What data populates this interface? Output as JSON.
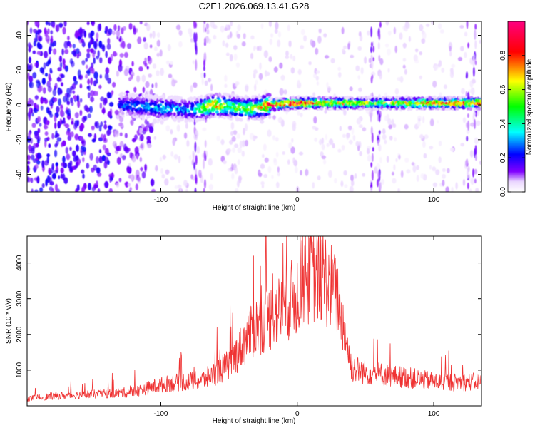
{
  "title": "C2E1.2026.069.13.41.G28",
  "chart_data": [
    {
      "type": "heatmap",
      "xlabel": "Height of straight line (km)",
      "ylabel": "Frequency (Hz)",
      "xlim": [
        -198,
        135
      ],
      "ylim": [
        -50,
        48
      ],
      "xticks": [
        -100,
        0,
        100
      ],
      "yticks": [
        -40,
        -20,
        0,
        20,
        40
      ],
      "xtick_labels": [
        "-100",
        "0",
        "100"
      ],
      "ytick_labels": [
        "-40",
        "-20",
        "0",
        "20",
        "40"
      ],
      "colorbar": {
        "label": "Normalized spectral amplitude",
        "range": [
          0,
          1
        ],
        "ticks": [
          0.0,
          0.2,
          0.4,
          0.6,
          0.8
        ],
        "tick_labels": [
          "0.0",
          "0.2",
          "0.4",
          "0.6",
          "0.8"
        ],
        "colormap": [
          "#ffffff",
          "#8000ff",
          "#0000ff",
          "#00ffff",
          "#00ff00",
          "#ffff00",
          "#ff0000",
          "#ff0080"
        ]
      },
      "ridge": {
        "x": [
          -130,
          -110,
          -100,
          -90,
          -80,
          -70,
          -60,
          -50,
          -40,
          -30,
          -20,
          0,
          20,
          60,
          100,
          135
        ],
        "frequency": [
          0,
          -1,
          -2,
          -2,
          -3,
          -2,
          0,
          -1,
          -2,
          -2,
          0,
          1,
          1,
          1,
          1,
          1
        ],
        "amplitude": [
          0.25,
          0.3,
          0.35,
          0.3,
          0.3,
          0.5,
          0.75,
          0.5,
          0.55,
          0.55,
          0.85,
          0.9,
          0.7,
          0.55,
          0.75,
          0.8
        ]
      }
    },
    {
      "type": "line",
      "xlabel": "Height of straight line (km)",
      "ylabel": "SNR (10 * v/v)",
      "xlim": [
        -198,
        135
      ],
      "ylim": [
        0,
        4750
      ],
      "xticks": [
        -100,
        0,
        100
      ],
      "yticks": [
        1000,
        2000,
        3000,
        4000
      ],
      "xtick_labels": [
        "-100",
        "0",
        "100"
      ],
      "ytick_labels": [
        "1000",
        "2000",
        "3000",
        "4000"
      ],
      "series": [
        {
          "name": "SNR",
          "color": "#ef3333",
          "x": [
            -198,
            -180,
            -160,
            -140,
            -120,
            -110,
            -100,
            -90,
            -80,
            -70,
            -60,
            -50,
            -40,
            -35,
            -30,
            -20,
            -10,
            0,
            5,
            10,
            15,
            20,
            25,
            30,
            40,
            50,
            60,
            70,
            80,
            90,
            100,
            110,
            120,
            135
          ],
          "baseline": [
            170,
            230,
            260,
            290,
            330,
            420,
            500,
            550,
            580,
            600,
            780,
            980,
            1450,
            1700,
            1900,
            2100,
            2350,
            2650,
            2950,
            3150,
            3100,
            3050,
            2800,
            2500,
            900,
            800,
            760,
            700,
            680,
            620,
            580,
            560,
            560,
            580
          ],
          "peaks": [
            {
              "x": -32,
              "y": 4200
            },
            {
              "x": -18,
              "y": 3700
            },
            {
              "x": 9,
              "y": 4700
            },
            {
              "x": 24,
              "y": 3700
            }
          ]
        }
      ]
    }
  ]
}
